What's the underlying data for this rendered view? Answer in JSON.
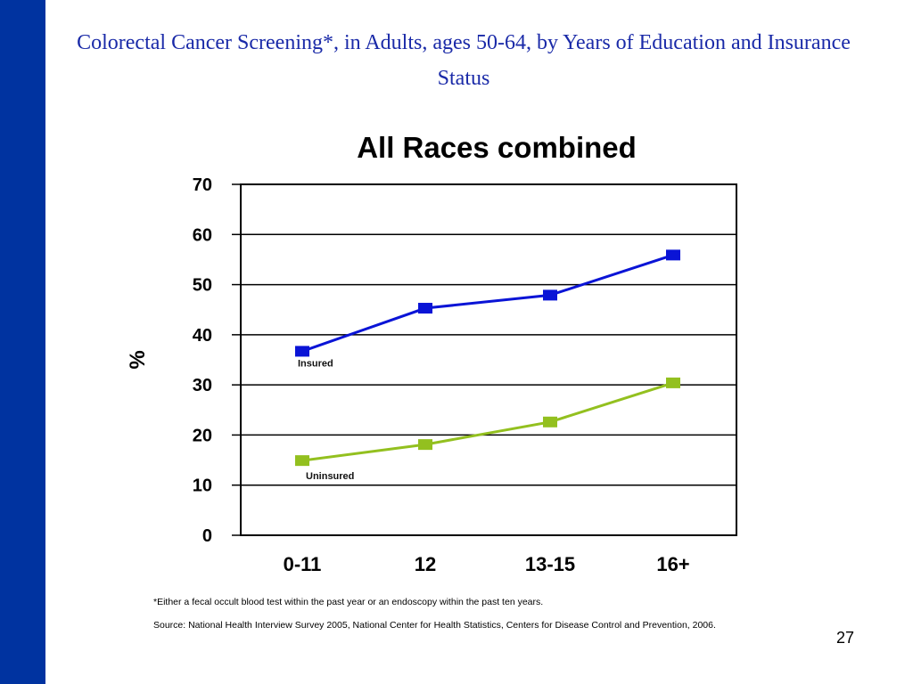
{
  "slide": {
    "title": "Colorectal Cancer Screening*, in Adults, ages 50-64, by Years of Education and Insurance Status",
    "footnote": "*Either a fecal occult blood test within the past year or an endoscopy within the past ten years.",
    "source": "Source: National Health Interview Survey 2005, National Center for Health Statistics, Centers for Disease Control and Prevention, 2006.",
    "page_number": "27",
    "accent_color": "#0033a0",
    "title_color": "#1a2aa8"
  },
  "chart_data": {
    "type": "line",
    "title": "All Races combined",
    "xlabel": "",
    "ylabel": "%",
    "categories": [
      "0-11",
      "12",
      "13-15",
      "16+"
    ],
    "ylim": [
      0,
      70
    ],
    "yticks": [
      0,
      10,
      20,
      30,
      40,
      50,
      60,
      70
    ],
    "grid": true,
    "legend": "none",
    "series": [
      {
        "name": "Insured",
        "values": [
          36.7,
          45.3,
          47.9,
          55.9
        ],
        "color": "#0a14d6"
      },
      {
        "name": "Uninsured",
        "values": [
          14.9,
          18.1,
          22.6,
          30.4
        ],
        "color": "#93c01f"
      }
    ]
  }
}
